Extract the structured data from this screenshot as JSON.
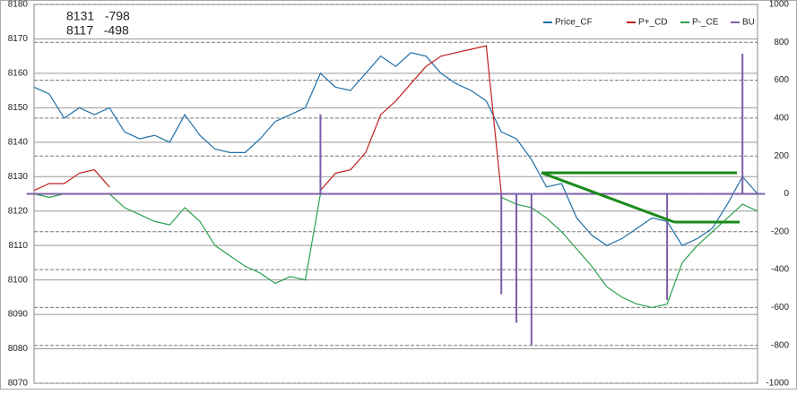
{
  "chart_data": {
    "type": "line",
    "annotations": [
      "8131   -798",
      "8117   -498"
    ],
    "x": [
      0,
      1,
      2,
      3,
      4,
      5,
      6,
      7,
      8,
      9,
      10,
      11,
      12,
      13,
      14,
      15,
      16,
      17,
      18,
      19,
      20,
      21,
      22,
      23,
      24,
      25,
      26,
      27,
      28,
      29,
      30,
      31,
      32,
      33,
      34,
      35,
      36,
      37,
      38,
      39,
      40,
      41,
      42,
      43,
      44,
      45,
      46,
      47,
      48
    ],
    "xlim": [
      0,
      48
    ],
    "ylim": [
      8070,
      8180
    ],
    "yticks": [
      8070,
      8080,
      8090,
      8100,
      8110,
      8120,
      8130,
      8140,
      8150,
      8160,
      8170,
      8180
    ],
    "y2lim": [
      -1000,
      1000
    ],
    "y2ticks": [
      -1000,
      -800,
      -600,
      -400,
      -200,
      0,
      200,
      400,
      600,
      800,
      1000
    ],
    "grid": true,
    "legend": "top-right",
    "series": [
      {
        "name": "Price_CF",
        "color": "#1f6fa8",
        "values": [
          8156,
          8154,
          8147,
          8150,
          8148,
          8150,
          8143,
          8141,
          8142,
          8140,
          8148,
          8142,
          8138,
          8137,
          8137,
          8141,
          8146,
          8148,
          8150,
          8160,
          8156,
          8155,
          8160,
          8165,
          8162,
          8166,
          8165,
          8160,
          8157,
          8155,
          8152,
          8143,
          8141,
          8135,
          8127,
          8128,
          8118,
          8113,
          8110,
          8112,
          8115,
          8118,
          8117,
          8110,
          8112,
          8115,
          8122,
          8130,
          8125
        ]
      },
      {
        "name": "P+_CD",
        "color": "#c0201f",
        "values": [
          8126,
          8128,
          8128,
          8131,
          8132,
          8127,
          null,
          null,
          null,
          null,
          null,
          null,
          null,
          null,
          null,
          null,
          null,
          null,
          null,
          8126,
          8131,
          8132,
          8137,
          8148,
          8152,
          8157,
          8162,
          8165,
          8166,
          8167,
          8168,
          8125,
          null,
          null,
          null,
          null,
          null,
          null,
          null,
          null,
          null,
          null,
          null,
          null,
          null,
          null,
          null,
          null,
          null
        ]
      },
      {
        "name": "P-_CE",
        "color": "#2ca04c",
        "values": [
          8125,
          8124,
          8125,
          8125,
          8125,
          8125,
          8121,
          8119,
          8117,
          8116,
          8121,
          8117,
          8110,
          8107,
          8104,
          8102,
          8099,
          8101,
          8100,
          8125,
          null,
          null,
          null,
          null,
          null,
          null,
          null,
          null,
          null,
          null,
          null,
          8124,
          8122,
          8121,
          8118,
          8114,
          8109,
          8104,
          8098,
          8095,
          8093,
          8092,
          8093,
          8105,
          8110,
          8114,
          8118,
          8122,
          8120
        ]
      },
      {
        "name": "BU",
        "color": "#7b5ea7",
        "axis": "y2",
        "values": [
          0,
          0,
          0,
          0,
          0,
          0,
          0,
          0,
          0,
          0,
          0,
          0,
          0,
          0,
          0,
          0,
          0,
          0,
          0,
          420,
          0,
          0,
          0,
          0,
          0,
          0,
          0,
          0,
          0,
          0,
          0,
          -530,
          -680,
          -800,
          0,
          0,
          0,
          0,
          0,
          0,
          0,
          0,
          -560,
          0,
          0,
          0,
          0,
          740,
          0
        ]
      }
    ]
  }
}
